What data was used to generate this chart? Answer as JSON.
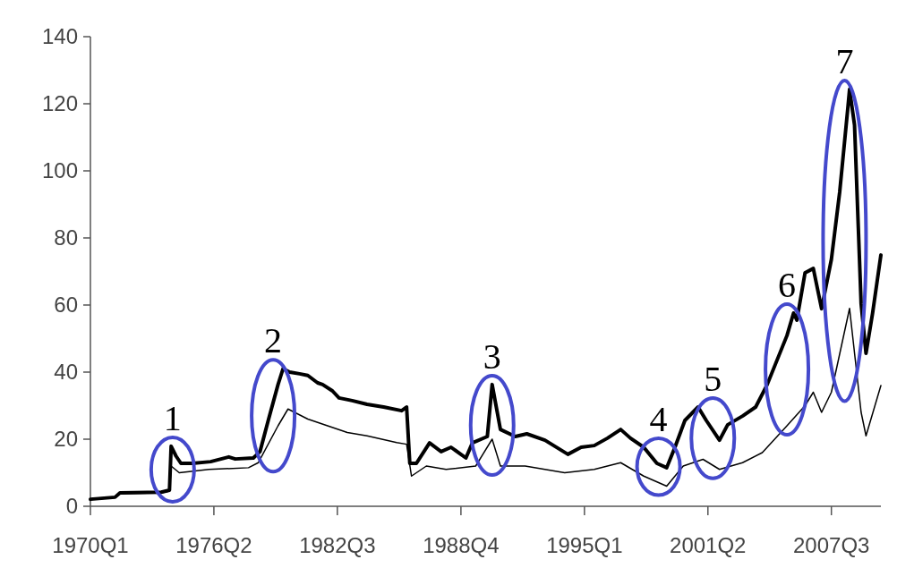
{
  "chart_data": {
    "type": "line",
    "xlim": [
      "1970-01",
      "2010-01"
    ],
    "ylim": [
      0,
      140
    ],
    "xticks": [
      {
        "value": "1970-01",
        "label": "1970Q1"
      },
      {
        "value": "1976-04",
        "label": "1976Q2"
      },
      {
        "value": "1982-07",
        "label": "1982Q3"
      },
      {
        "value": "1988-10",
        "label": "1988Q4"
      },
      {
        "value": "1995-01",
        "label": "1995Q1"
      },
      {
        "value": "2001-04",
        "label": "2001Q2"
      },
      {
        "value": "2007-07",
        "label": "2007Q3"
      }
    ],
    "yticks": [
      0,
      20,
      40,
      60,
      80,
      100,
      120,
      140
    ],
    "series": [
      {
        "color": "#000000",
        "x": [
          "1970-01",
          "1971-04",
          "1971-07",
          "1973-08",
          "1974-01",
          "1974-02",
          "1974-05",
          "1974-08",
          "1975-03",
          "1976-02",
          "1977-01",
          "1977-05",
          "1978-04",
          "1978-08",
          "1979-01",
          "1979-07",
          "1979-10",
          "1980-02",
          "1980-08",
          "1981-01",
          "1981-07",
          "1981-10",
          "1982-04",
          "1982-08",
          "1983-04",
          "1984-01",
          "1984-11",
          "1985-10",
          "1986-01",
          "1986-03",
          "1986-07",
          "1987-03",
          "1987-10",
          "1988-04",
          "1989-01",
          "1989-05",
          "1990-02",
          "1990-05",
          "1990-10",
          "1991-07",
          "1992-02",
          "1993-01",
          "1994-03",
          "1994-11",
          "1995-07",
          "1996-03",
          "1996-11",
          "1997-05",
          "1998-01",
          "1998-09",
          "1999-03",
          "1999-08",
          "2000-02",
          "2000-10",
          "2001-03",
          "2001-11",
          "2002-04",
          "2003-01",
          "2003-09",
          "2004-04",
          "2005-04",
          "2005-08",
          "2005-10",
          "2006-03",
          "2006-08",
          "2007-01",
          "2007-07",
          "2007-12",
          "2008-05",
          "2008-06",
          "2008-09",
          "2009-01",
          "2009-04",
          "2009-08",
          "2010-01"
        ],
        "values": [
          2.1,
          2.7,
          4,
          4.2,
          4.8,
          17.9,
          15,
          12.8,
          12.8,
          13.3,
          14.7,
          14.1,
          14.4,
          16.3,
          25.6,
          36.3,
          41,
          40,
          39.5,
          39,
          36.8,
          36.3,
          34.4,
          32.3,
          31.5,
          30.4,
          29.6,
          28.5,
          29.6,
          12.8,
          12.8,
          18.9,
          16.3,
          17.6,
          14.4,
          18.9,
          20.8,
          36.3,
          22.9,
          20.8,
          21.6,
          19.7,
          15.5,
          17.6,
          18.1,
          20.3,
          22.9,
          20.3,
          17.6,
          12.8,
          11.5,
          17.6,
          25.6,
          29.6,
          25.6,
          19.7,
          24.3,
          26.9,
          29.6,
          36.3,
          50.9,
          57.6,
          55.5,
          69.6,
          70.9,
          58.9,
          73.6,
          93.6,
          118.9,
          124.3,
          113.6,
          60.3,
          45.6,
          57.6,
          74.9
        ]
      },
      {
        "color": "#000000",
        "x": [
          "1970-01",
          "1971-04",
          "1971-07",
          "1973-08",
          "1974-01",
          "1974-02",
          "1974-07",
          "1976-01",
          "1978-01",
          "1978-07",
          "1979-07",
          "1980-01",
          "1981-01",
          "1982-01",
          "1983-01",
          "1984-01",
          "1985-07",
          "1986-01",
          "1986-04",
          "1987-01",
          "1988-01",
          "1989-07",
          "1990-05",
          "1990-10",
          "1992-01",
          "1994-01",
          "1995-07",
          "1996-11",
          "1998-01",
          "1999-03",
          "2000-01",
          "2001-01",
          "2001-11",
          "2003-01",
          "2004-01",
          "2005-04",
          "2006-03",
          "2006-08",
          "2007-01",
          "2007-07",
          "2008-06",
          "2009-01",
          "2009-04",
          "2010-01"
        ],
        "values": [
          2,
          2.6,
          3.8,
          4,
          4.5,
          12,
          10,
          11,
          11.5,
          13,
          24,
          29,
          26,
          24,
          22,
          21,
          19,
          18.5,
          9,
          12,
          11,
          12,
          20,
          12,
          12,
          10,
          11,
          13,
          9,
          6,
          12,
          14,
          11,
          13,
          16,
          24,
          30,
          34,
          28,
          34,
          59,
          28,
          21,
          36
        ]
      }
    ],
    "annotations": [
      {
        "text": "1",
        "x": "1974-03",
        "y": 10
      },
      {
        "text": "2",
        "x": "1979-04",
        "y": 27
      },
      {
        "text": "3",
        "x": "1990-05",
        "y": 23
      },
      {
        "text": "4",
        "x": "1998-10",
        "y": 12
      },
      {
        "text": "5",
        "x": "2001-07",
        "y": 24
      },
      {
        "text": "6",
        "x": "2005-04",
        "y": 47
      },
      {
        "text": "7",
        "x": "2008-03",
        "y": 118
      }
    ]
  }
}
